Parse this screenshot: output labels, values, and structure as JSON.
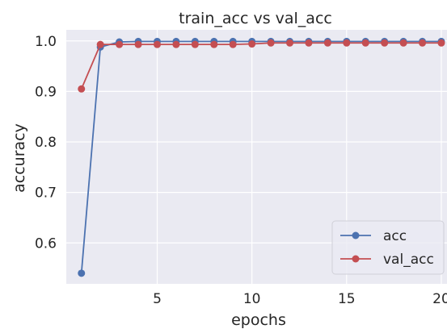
{
  "chart_data": {
    "type": "line",
    "title": "train_acc vs val_acc",
    "xlabel": "epochs",
    "ylabel": "accuracy",
    "x": [
      1,
      2,
      3,
      4,
      5,
      6,
      7,
      8,
      9,
      10,
      11,
      12,
      13,
      14,
      15,
      16,
      17,
      18,
      19,
      20
    ],
    "xlim": [
      0.2,
      20.3
    ],
    "ylim": [
      0.519,
      1.022
    ],
    "xticks": [
      5,
      10,
      15,
      20
    ],
    "yticks": [
      0.6,
      0.7,
      0.8,
      0.9,
      1.0
    ],
    "ytick_labels": [
      "0.6",
      "0.7",
      "0.8",
      "0.9",
      "1.0"
    ],
    "xtick_labels": [
      "5",
      "10",
      "15",
      "20"
    ],
    "grid": true,
    "legend_position": "bottom-right",
    "series": [
      {
        "name": "acc",
        "color": "#4c72b0",
        "values": [
          0.54,
          0.988,
          0.998,
          0.999,
          0.999,
          0.999,
          0.999,
          0.999,
          0.999,
          0.999,
          0.999,
          0.999,
          0.999,
          0.999,
          0.999,
          0.999,
          0.999,
          0.999,
          0.999,
          0.999
        ]
      },
      {
        "name": "val_acc",
        "color": "#c44e52",
        "values": [
          0.905,
          0.993,
          0.993,
          0.993,
          0.993,
          0.993,
          0.993,
          0.993,
          0.993,
          0.994,
          0.996,
          0.996,
          0.996,
          0.996,
          0.996,
          0.996,
          0.996,
          0.996,
          0.996,
          0.996
        ]
      }
    ]
  }
}
